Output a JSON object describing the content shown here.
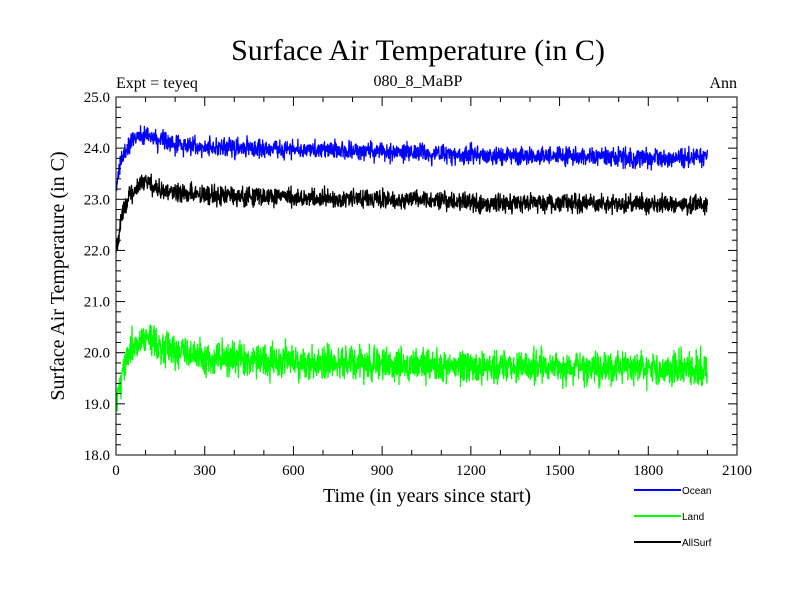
{
  "chart_data": {
    "type": "line",
    "title": "Surface Air Temperature (in C)",
    "subtitle_left": "Expt = teyeq",
    "subtitle_center": "080_8_MaBP",
    "subtitle_right": "Ann",
    "xlabel": "Time (in years since start)",
    "ylabel": "Surface Air Temperature (in C)",
    "xlim": [
      0,
      2100
    ],
    "ylim": [
      18.0,
      25.0
    ],
    "xticks": [
      0,
      300,
      600,
      900,
      1200,
      1500,
      1800,
      2100
    ],
    "xtick_labels": [
      "0",
      "300",
      "600",
      "900",
      "1200",
      "1500",
      "1800",
      "2100"
    ],
    "yticks": [
      18,
      19,
      20,
      21,
      22,
      23,
      24,
      25
    ],
    "ytick_labels": [
      "18.0",
      "19.0",
      "20.0",
      "21.0",
      "22.0",
      "23.0",
      "24.0",
      "25.0"
    ],
    "grid": false,
    "legend_position": "bottom-right",
    "x_range": [
      0,
      2000
    ],
    "series": [
      {
        "name": "Ocean",
        "color": "#0000ff",
        "noise_amplitude": 0.09,
        "keypoints": [
          [
            0,
            23.2
          ],
          [
            20,
            23.8
          ],
          [
            50,
            24.15
          ],
          [
            100,
            24.28
          ],
          [
            150,
            24.12
          ],
          [
            300,
            24.02
          ],
          [
            600,
            23.98
          ],
          [
            900,
            23.93
          ],
          [
            1200,
            23.87
          ],
          [
            1500,
            23.85
          ],
          [
            1800,
            23.8
          ],
          [
            2000,
            23.8
          ]
        ]
      },
      {
        "name": "Land",
        "color": "#00ff00",
        "noise_amplitude": 0.16,
        "keypoints": [
          [
            0,
            18.9
          ],
          [
            20,
            19.6
          ],
          [
            50,
            20.05
          ],
          [
            100,
            20.3
          ],
          [
            150,
            20.08
          ],
          [
            300,
            19.9
          ],
          [
            600,
            19.82
          ],
          [
            900,
            19.78
          ],
          [
            1200,
            19.72
          ],
          [
            1500,
            19.72
          ],
          [
            1800,
            19.68
          ],
          [
            2000,
            19.7
          ]
        ]
      },
      {
        "name": "AllSurf",
        "color": "#000000",
        "noise_amplitude": 0.09,
        "keypoints": [
          [
            0,
            22.0
          ],
          [
            20,
            22.7
          ],
          [
            50,
            23.15
          ],
          [
            100,
            23.33
          ],
          [
            150,
            23.17
          ],
          [
            300,
            23.07
          ],
          [
            600,
            23.04
          ],
          [
            900,
            23.0
          ],
          [
            1200,
            22.95
          ],
          [
            1500,
            22.92
          ],
          [
            1800,
            22.9
          ],
          [
            2000,
            22.9
          ]
        ]
      }
    ]
  }
}
